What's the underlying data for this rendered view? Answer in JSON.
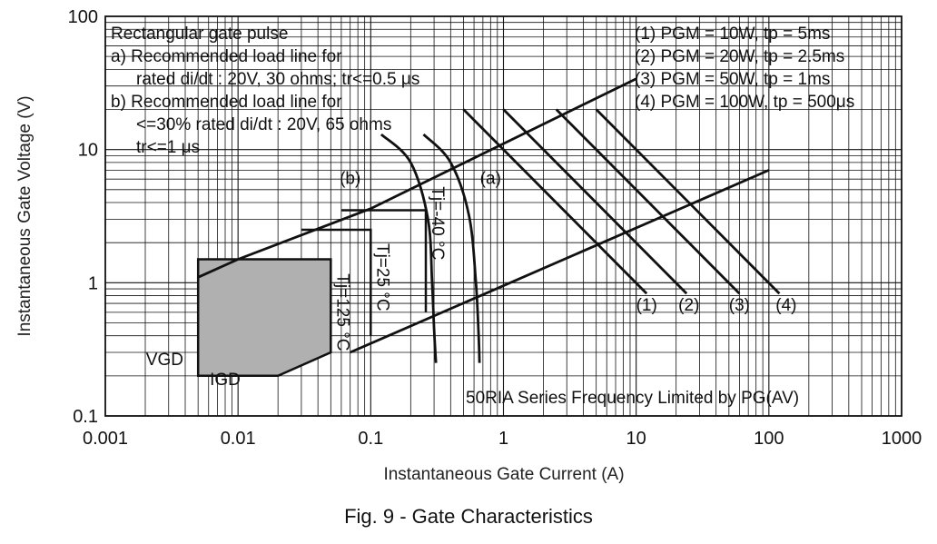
{
  "chart_data": {
    "type": "line",
    "title": "",
    "xlabel": "Instantaneous Gate Current (A)",
    "ylabel": "Instantaneous Gate Voltage (V)",
    "x_scale": "log",
    "y_scale": "log",
    "xlim": [
      0.001,
      1000
    ],
    "ylim": [
      0.1,
      100
    ],
    "x_ticks": [
      "0.001",
      "0.01",
      "0.1",
      "1",
      "10",
      "100",
      "1000"
    ],
    "y_ticks": [
      "0.1",
      "1",
      "10",
      "100"
    ],
    "grid": true,
    "top_left_notes": [
      "Rectangular gate pulse",
      "a) Recommended load line for",
      "rated di/dt : 20V, 30 ohms; tr<=0.5 μs",
      "b) Recommended load line for",
      "<=30% rated di/dt : 20V, 65 ohms",
      "tr<=1 μs"
    ],
    "legend_notes": [
      "(1) PGM = 10W,  tp = 5ms",
      "(2) PGM = 20W,  tp = 2.5ms",
      "(3) PGM = 50W,  tp = 1ms",
      "(4) PGM = 100W,  tp = 500μs"
    ],
    "bottom_note": "50RIA Series     Frequency Limited by PG(AV)",
    "series": [
      {
        "name": "(a)",
        "x": [
          0.25,
          0.4,
          0.55,
          0.62,
          0.65,
          0.66
        ],
        "y": [
          13,
          8,
          3.2,
          1.0,
          0.4,
          0.25
        ]
      },
      {
        "name": "(b)",
        "x": [
          0.12,
          0.2,
          0.27,
          0.29,
          0.3,
          0.31
        ],
        "y": [
          13,
          8,
          3.0,
          1.0,
          0.45,
          0.25
        ]
      },
      {
        "name": "(1)",
        "x": [
          0.5,
          12
        ],
        "y": [
          20,
          0.83
        ]
      },
      {
        "name": "(2)",
        "x": [
          1,
          24
        ],
        "y": [
          20,
          0.83
        ]
      },
      {
        "name": "(3)",
        "x": [
          2.5,
          60
        ],
        "y": [
          20,
          0.83
        ]
      },
      {
        "name": "(4)",
        "x": [
          5,
          120
        ],
        "y": [
          20,
          0.83
        ]
      },
      {
        "name": "",
        "x": [
          0.005,
          0.01,
          0.1,
          10
        ],
        "y": [
          1.1,
          1.5,
          3.6,
          34
        ]
      },
      {
        "name": "",
        "x": [
          0.07,
          100
        ],
        "y": [
          0.3,
          7
        ]
      }
    ],
    "regions": [
      {
        "name": "Tj=125 °C",
        "x": [
          0.005,
          0.05,
          0.05,
          0.02,
          0.005
        ],
        "y": [
          1.5,
          1.5,
          0.3,
          0.2,
          0.2
        ],
        "fill": "#b0b0b0"
      },
      {
        "name": "Tj=25 °C",
        "x": [
          0.03,
          0.1,
          0.1
        ],
        "y": [
          2.5,
          2.5,
          0.4
        ]
      },
      {
        "name": "Tj=-40 °C",
        "x": [
          0.06,
          0.26,
          0.26
        ],
        "y": [
          3.5,
          3.5,
          0.6
        ]
      }
    ],
    "annotations": [
      {
        "text": "(a)",
        "x": 0.8,
        "y": 5.5
      },
      {
        "text": "(b)",
        "x": 0.07,
        "y": 5.5
      },
      {
        "text": "(1)",
        "x": 12,
        "y": 0.62
      },
      {
        "text": "(2)",
        "x": 25,
        "y": 0.62
      },
      {
        "text": "(3)",
        "x": 60,
        "y": 0.62
      },
      {
        "text": "(4)",
        "x": 135,
        "y": 0.62
      },
      {
        "text": "VGD",
        "x": 0.0028,
        "y": 0.24
      },
      {
        "text": "IGD",
        "x": 0.008,
        "y": 0.17
      },
      {
        "text": "Tj=-40 °C",
        "x": 0.29,
        "y": 2.8,
        "rotate": 90
      },
      {
        "text": "Tj=25 °C",
        "x": 0.112,
        "y": 1.1,
        "rotate": 90
      },
      {
        "text": "Tj=125 °C",
        "x": 0.056,
        "y": 0.6,
        "rotate": 90
      }
    ]
  },
  "caption": "Fig. 9 - Gate Characteristics"
}
